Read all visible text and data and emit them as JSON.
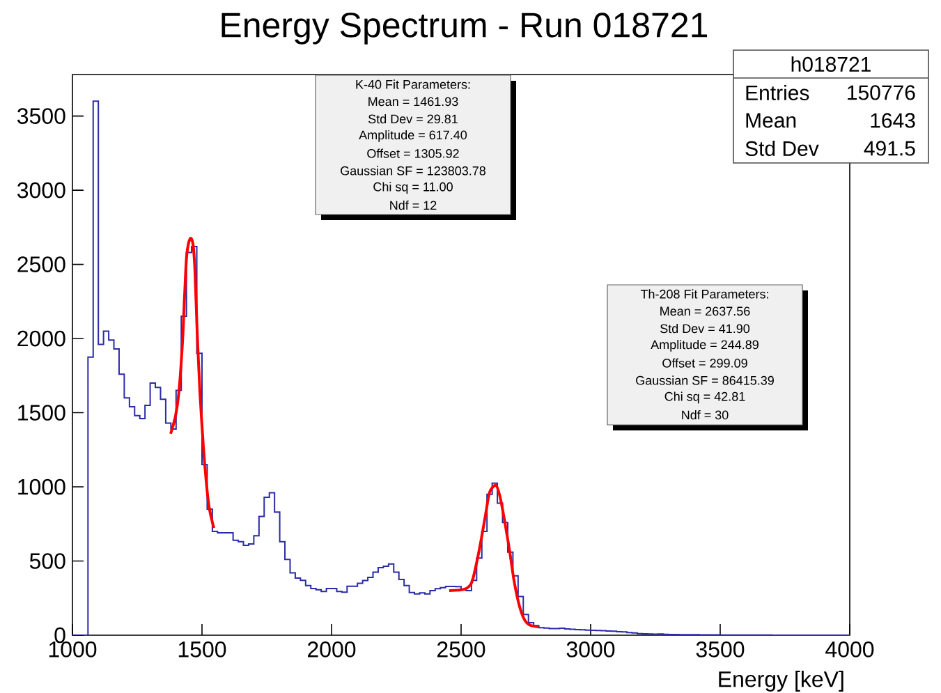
{
  "chart_data": {
    "type": "histogram",
    "title": "Energy Spectrum - Run 018721",
    "xlabel": "Energy [keV]",
    "xlim": [
      1000,
      4000
    ],
    "ylim": [
      0,
      3780
    ],
    "xticks": [
      1000,
      1500,
      2000,
      2500,
      3000,
      3500,
      4000
    ],
    "yticks": [
      0,
      500,
      1000,
      1500,
      2000,
      2500,
      3000,
      3500
    ],
    "series": [
      {
        "type": "histogram",
        "color": "#2b2ba8",
        "bins": [
          1000,
          1020,
          1040,
          1060,
          1080,
          1100,
          1120,
          1140,
          1160,
          1180,
          1200,
          1220,
          1240,
          1260,
          1280,
          1300,
          1320,
          1340,
          1360,
          1380,
          1400,
          1420,
          1440,
          1460,
          1480,
          1500,
          1520,
          1540,
          1560,
          1580,
          1600,
          1620,
          1640,
          1660,
          1680,
          1700,
          1720,
          1740,
          1760,
          1780,
          1800,
          1820,
          1840,
          1860,
          1880,
          1900,
          1920,
          1940,
          1960,
          1980,
          2000,
          2020,
          2040,
          2060,
          2080,
          2100,
          2120,
          2140,
          2160,
          2180,
          2200,
          2220,
          2240,
          2260,
          2280,
          2300,
          2320,
          2340,
          2360,
          2380,
          2400,
          2420,
          2440,
          2460,
          2480,
          2500,
          2520,
          2540,
          2560,
          2580,
          2600,
          2620,
          2640,
          2660,
          2680,
          2700,
          2720,
          2740,
          2760,
          2780,
          2800,
          2820,
          2840,
          2860,
          2880,
          2900,
          2920,
          2940,
          2960,
          2980,
          3000,
          3020,
          3040,
          3060,
          3080,
          3100,
          3120,
          3140,
          3160,
          3180,
          3200,
          3220,
          3240,
          3260,
          3280,
          3300,
          3320,
          3340,
          3360,
          3380,
          3400,
          3420,
          3440,
          3460,
          3480,
          3500,
          3520,
          3540,
          3560,
          3580,
          3600,
          3620,
          3640,
          3660,
          3680,
          3700,
          3720,
          3740,
          3760,
          3780,
          3800,
          3820,
          3840,
          3860,
          3880,
          3900,
          3920,
          3940,
          3960,
          3980,
          4000
        ],
        "values": [
          0,
          0,
          0,
          1875,
          3600,
          1960,
          2050,
          1990,
          1930,
          1760,
          1600,
          1540,
          1480,
          1460,
          1550,
          1700,
          1670,
          1590,
          1430,
          1390,
          1650,
          2150,
          2580,
          2620,
          1900,
          1150,
          850,
          700,
          690,
          690,
          690,
          640,
          630,
          606,
          615,
          670,
          800,
          930,
          960,
          830,
          630,
          510,
          420,
          385,
          370,
          335,
          315,
          306,
          295,
          315,
          315,
          295,
          290,
          330,
          330,
          350,
          368,
          390,
          425,
          455,
          465,
          480,
          425,
          375,
          335,
          288,
          278,
          285,
          278,
          300,
          313,
          320,
          329,
          329,
          328,
          305,
          300,
          370,
          520,
          700,
          950,
          1025,
          890,
          760,
          560,
          400,
          260,
          140,
          85,
          65,
          50,
          48,
          45,
          44,
          47,
          42,
          40,
          38,
          36,
          34,
          33,
          32,
          30,
          28,
          27,
          24,
          22,
          18,
          15,
          10,
          9,
          8,
          7,
          8,
          6,
          5,
          5,
          4,
          4,
          3,
          3,
          2,
          2,
          2,
          2,
          1,
          1,
          1,
          1,
          1,
          1,
          1,
          1,
          1,
          1,
          0,
          0,
          0,
          0,
          0,
          0,
          0,
          0,
          0,
          0,
          0,
          0,
          0,
          0,
          0
        ]
      },
      {
        "type": "line",
        "color": "#ff0000",
        "x": [
          1379,
          1398,
          1411,
          1425,
          1433,
          1441,
          1454,
          1465,
          1473,
          1481,
          1492,
          1505,
          1516,
          1527,
          1540,
          1546
        ],
        "values": [
          1358,
          1480,
          1640,
          1983,
          2297,
          2560,
          2673,
          2640,
          2452,
          2062,
          1640,
          1278,
          1043,
          869,
          761,
          723
        ]
      },
      {
        "type": "line",
        "color": "#ff0000",
        "x": [
          2454,
          2513,
          2540,
          2557,
          2575,
          2594,
          2610,
          2634,
          2650,
          2669,
          2688,
          2704,
          2723,
          2742,
          2763,
          2798
        ],
        "values": [
          300,
          310,
          352,
          465,
          620,
          808,
          963,
          1010,
          935,
          761,
          559,
          371,
          211,
          113,
          70,
          56
        ]
      }
    ],
    "annotations": [
      "K-40 Fit Parameters:",
      "Mean = 1461.93",
      "Std Dev = 29.81",
      "Amplitude = 617.40",
      "Offset = 1305.92",
      "Gaussian SF  = 123803.78",
      "Chi sq = 11.00",
      "Ndf = 12",
      "Th-208 Fit Parameters:",
      "Mean = 2637.56",
      "Std Dev = 41.90",
      "Amplitude = 244.89",
      "Offset = 299.09",
      "Gaussian SF = 86415.39",
      "Chi sq = 42.81",
      "Ndf = 30",
      "h018721",
      "Entries",
      "150776",
      "Mean",
      "1643",
      "Std Dev",
      "491.5"
    ]
  }
}
